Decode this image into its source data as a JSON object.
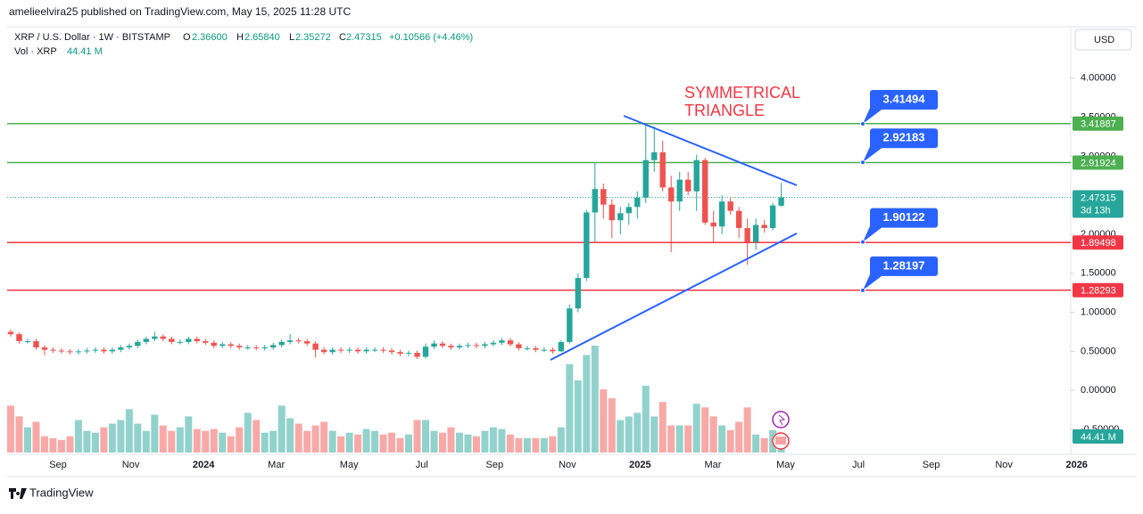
{
  "chart_data": {
    "type": "candlestick",
    "published": "amelieelvira25 published on TradingView.com, May 15, 2025 11:28 UTC",
    "symbol": "XRP / U.S. Dollar · 1W · BITSTAMP",
    "ohlc_legend": {
      "open_label": "O",
      "open": "2.36600",
      "high_label": "H",
      "high": "2.65840",
      "low_label": "L",
      "low": "2.35272",
      "close_label": "C",
      "close": "2.47315",
      "change": "+0.10566 (+4.46%)"
    },
    "volume_legend": {
      "name": "Vol · XRP",
      "value": "44.41 M"
    },
    "currency": "USD",
    "annotation": [
      "SYMMETRICAL",
      "TRIANGLE"
    ],
    "brand": "TradingView",
    "up_color": "#26a69a",
    "down_color": "#ef5350",
    "ylim": [
      -0.82,
      4.66
    ],
    "yticks": [
      {
        "value": 4,
        "label": "4.00000"
      },
      {
        "value": 3.5,
        "label": "3.50000"
      },
      {
        "value": 3,
        "label": "3.00000"
      },
      {
        "value": 2,
        "label": "2.00000"
      },
      {
        "value": 1.5,
        "label": "1.50000"
      },
      {
        "value": 1,
        "label": "1.00000"
      },
      {
        "value": 0.5,
        "label": "0.50000"
      },
      {
        "value": 0,
        "label": "0.00000"
      },
      {
        "value": -0.5,
        "label": "-0.50000"
      }
    ],
    "grid": false,
    "x_axis_labels": [
      "Sep",
      "Nov",
      "2024",
      "Mar",
      "May",
      "Jul",
      "Sep",
      "Nov",
      "2025",
      "Mar",
      "May",
      "Jul",
      "Sep",
      "Nov",
      "2026"
    ],
    "open": [
      0.75,
      0.72,
      0.63,
      0.63,
      0.55,
      0.52,
      0.51,
      0.5,
      0.49,
      0.5,
      0.51,
      0.52,
      0.5,
      0.52,
      0.55,
      0.57,
      0.62,
      0.66,
      0.69,
      0.66,
      0.62,
      0.62,
      0.66,
      0.63,
      0.61,
      0.57,
      0.59,
      0.57,
      0.55,
      0.55,
      0.54,
      0.55,
      0.58,
      0.62,
      0.64,
      0.63,
      0.6,
      0.52,
      0.49,
      0.52,
      0.51,
      0.52,
      0.5,
      0.52,
      0.52,
      0.51,
      0.49,
      0.47,
      0.48,
      0.43,
      0.56,
      0.6,
      0.57,
      0.55,
      0.57,
      0.58,
      0.57,
      0.59,
      0.61,
      0.64,
      0.59,
      0.54,
      0.54,
      0.52,
      0.52,
      0.5,
      0.62,
      1.05,
      1.44,
      2.28,
      2.58,
      2.38,
      2.18,
      2.27,
      2.35,
      2.47,
      2.95,
      3.05,
      2.6,
      2.42,
      2.7,
      2.55,
      2.95,
      2.15,
      2.1,
      2.42,
      2.3,
      2.08,
      1.9,
      2.12,
      2.08,
      2.366
    ],
    "high": [
      0.78,
      0.74,
      0.66,
      0.66,
      0.58,
      0.55,
      0.54,
      0.53,
      0.53,
      0.54,
      0.55,
      0.55,
      0.55,
      0.58,
      0.6,
      0.65,
      0.69,
      0.75,
      0.72,
      0.69,
      0.65,
      0.69,
      0.69,
      0.66,
      0.64,
      0.62,
      0.62,
      0.6,
      0.58,
      0.58,
      0.58,
      0.61,
      0.65,
      0.72,
      0.67,
      0.66,
      0.63,
      0.55,
      0.55,
      0.55,
      0.55,
      0.55,
      0.55,
      0.55,
      0.55,
      0.54,
      0.52,
      0.51,
      0.51,
      0.6,
      0.64,
      0.63,
      0.6,
      0.6,
      0.61,
      0.61,
      0.62,
      0.64,
      0.67,
      0.67,
      0.62,
      0.57,
      0.57,
      0.55,
      0.55,
      0.64,
      1.1,
      1.5,
      2.31,
      2.91,
      2.65,
      2.45,
      2.35,
      2.4,
      2.55,
      3.4,
      3.38,
      3.2,
      2.75,
      2.8,
      2.8,
      3.02,
      2.98,
      2.3,
      2.5,
      2.48,
      2.35,
      2.2,
      2.2,
      2.18,
      2.4,
      2.6584
    ],
    "low": [
      0.69,
      0.6,
      0.6,
      0.52,
      0.45,
      0.48,
      0.47,
      0.46,
      0.46,
      0.47,
      0.48,
      0.47,
      0.47,
      0.49,
      0.52,
      0.54,
      0.59,
      0.63,
      0.63,
      0.59,
      0.59,
      0.59,
      0.6,
      0.58,
      0.54,
      0.54,
      0.54,
      0.52,
      0.52,
      0.51,
      0.51,
      0.52,
      0.55,
      0.59,
      0.6,
      0.57,
      0.42,
      0.46,
      0.46,
      0.48,
      0.48,
      0.47,
      0.47,
      0.49,
      0.48,
      0.46,
      0.44,
      0.44,
      0.4,
      0.41,
      0.53,
      0.54,
      0.52,
      0.52,
      0.54,
      0.54,
      0.54,
      0.56,
      0.58,
      0.56,
      0.51,
      0.51,
      0.49,
      0.49,
      0.47,
      0.49,
      0.6,
      1.0,
      1.4,
      1.9,
      2.2,
      1.95,
      2.0,
      2.12,
      2.2,
      2.4,
      2.8,
      2.55,
      1.77,
      2.3,
      2.5,
      2.3,
      2.12,
      1.9,
      2.0,
      2.25,
      1.95,
      1.61,
      1.8,
      2.02,
      2.05,
      2.35272
    ],
    "close": [
      0.72,
      0.63,
      0.63,
      0.55,
      0.52,
      0.51,
      0.5,
      0.49,
      0.5,
      0.51,
      0.52,
      0.5,
      0.52,
      0.55,
      0.57,
      0.62,
      0.66,
      0.69,
      0.66,
      0.62,
      0.62,
      0.66,
      0.63,
      0.61,
      0.57,
      0.59,
      0.57,
      0.55,
      0.55,
      0.54,
      0.55,
      0.58,
      0.62,
      0.64,
      0.63,
      0.6,
      0.52,
      0.49,
      0.52,
      0.51,
      0.52,
      0.5,
      0.52,
      0.52,
      0.51,
      0.49,
      0.47,
      0.48,
      0.43,
      0.56,
      0.6,
      0.57,
      0.55,
      0.57,
      0.58,
      0.57,
      0.59,
      0.61,
      0.64,
      0.59,
      0.54,
      0.54,
      0.52,
      0.52,
      0.5,
      0.62,
      1.05,
      1.44,
      2.28,
      2.58,
      2.38,
      2.18,
      2.27,
      2.35,
      2.47,
      2.95,
      3.05,
      2.6,
      2.42,
      2.7,
      2.55,
      2.95,
      2.15,
      2.1,
      2.42,
      2.3,
      2.08,
      1.9,
      2.12,
      2.08,
      2.37,
      2.47315
    ],
    "volume": [
      130,
      100,
      70,
      85,
      45,
      40,
      35,
      45,
      90,
      60,
      55,
      70,
      80,
      90,
      120,
      80,
      60,
      105,
      75,
      60,
      70,
      100,
      65,
      60,
      65,
      55,
      45,
      70,
      110,
      90,
      55,
      60,
      130,
      95,
      80,
      60,
      75,
      85,
      60,
      45,
      55,
      50,
      65,
      60,
      50,
      55,
      40,
      50,
      90,
      90,
      60,
      55,
      70,
      55,
      50,
      45,
      60,
      70,
      65,
      50,
      40,
      40,
      40,
      40,
      45,
      70,
      245,
      200,
      270,
      296,
      175,
      150,
      90,
      100,
      110,
      185,
      100,
      140,
      75,
      75,
      75,
      135,
      125,
      100,
      75,
      62,
      85,
      125,
      50,
      40,
      62,
      44.41
    ],
    "levels": [
      {
        "value": 3.41887,
        "color": "#4caf50"
      },
      {
        "value": 2.91924,
        "color": "#4caf50"
      },
      {
        "value": 1.89498,
        "color": "#f23645"
      },
      {
        "value": 1.28293,
        "color": "#f23645"
      }
    ],
    "callouts": [
      3.41494,
      2.92183,
      1.90122,
      1.28197
    ],
    "last_price": 2.47315,
    "countdown": "3d 13h"
  }
}
